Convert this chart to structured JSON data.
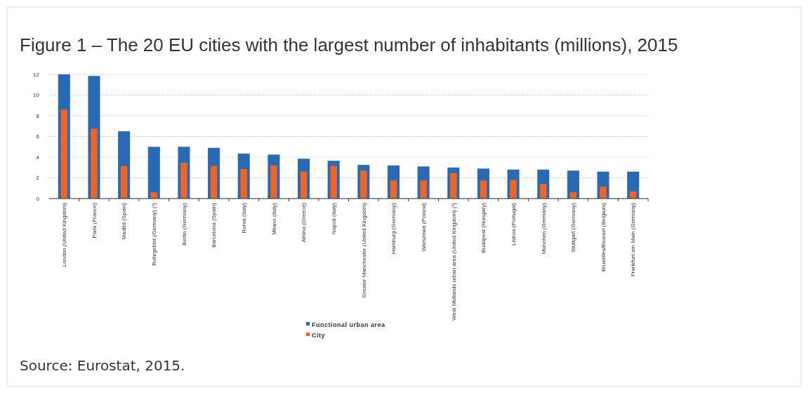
{
  "chart_data": {
    "type": "bar",
    "title": "Figure 1 – The 20 EU cities with the largest number of inhabitants (millions), 2015",
    "categories": [
      "London (United Kingdom)",
      "Paris (France)",
      "Madrid (Spain)",
      "Ruhrgebiet (Germany) (¹)",
      "Berlin (Germany)",
      "Barcelona (Spain)",
      "Roma (Italy)",
      "Milano (Italy)",
      "Athina (Greece)",
      "Napoli (Italy)",
      "Greater Manchester (United Kingdom)",
      "Hamburg (Germany)",
      "Warszawa (Poland)",
      "West Midlands urban area (United Kingdom) (¹)",
      "Budapest (Hungary)",
      "Lisboa (Portugal)",
      "München (Germany)",
      "Stuttgart (Germany)",
      "Bruxelles/Brussel (Belgium)",
      "Frankfurt am Main (Germany)"
    ],
    "series": [
      {
        "name": "Functional urban area",
        "color": "#2a6ab5",
        "values": [
          12,
          11.85,
          6.5,
          5.0,
          5.0,
          4.9,
          4.35,
          4.25,
          3.85,
          3.65,
          3.25,
          3.2,
          3.1,
          3.0,
          2.9,
          2.8,
          2.8,
          2.7,
          2.6,
          2.6
        ]
      },
      {
        "name": "City",
        "color": "#f06424",
        "values": [
          8.6,
          6.75,
          3.15,
          0.6,
          3.45,
          3.15,
          2.85,
          3.2,
          2.6,
          3.15,
          2.7,
          1.75,
          1.75,
          2.45,
          1.75,
          1.8,
          1.4,
          0.6,
          1.15,
          0.7
        ]
      }
    ],
    "ylim": [
      0,
      12
    ],
    "yticks": [
      0,
      2,
      4,
      6,
      8,
      10,
      12
    ],
    "grid": "y",
    "legend": "bottom",
    "annotations": [
      "Source: Eurostat, 2015."
    ]
  }
}
